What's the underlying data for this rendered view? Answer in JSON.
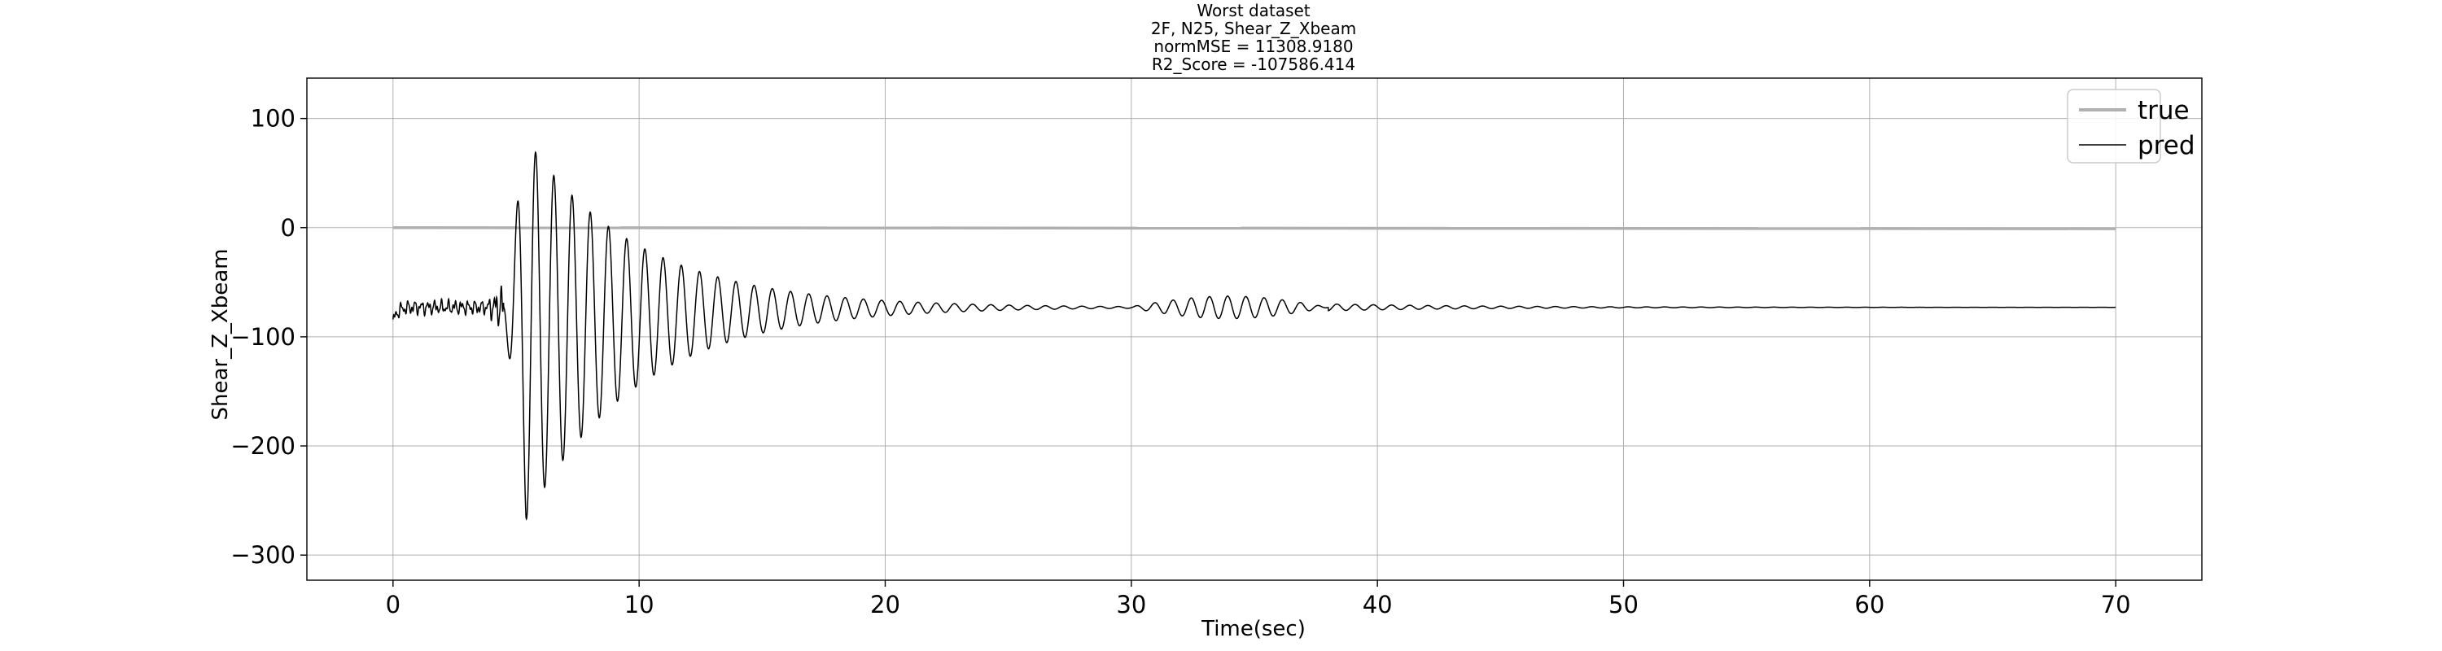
{
  "chart_data": {
    "type": "line",
    "title_lines": [
      "Worst dataset",
      "2F, N25, Shear_Z_Xbeam",
      "normMSE = 11308.9180",
      "R2_Score = -107586.414"
    ],
    "xlabel": "Time(sec)",
    "ylabel": "Shear_Z_Xbeam",
    "xlim": [
      -3.5,
      73.5
    ],
    "ylim": [
      -323,
      137
    ],
    "xticks": [
      0,
      10,
      20,
      30,
      40,
      50,
      60,
      70
    ],
    "yticks": [
      100,
      0,
      -100,
      -200,
      -300
    ],
    "xtick_labels": [
      "0",
      "10",
      "20",
      "30",
      "40",
      "50",
      "60",
      "70"
    ],
    "ytick_labels": [
      "100",
      "0",
      "−100",
      "−200",
      "−300"
    ],
    "grid": true,
    "legend_position": "top-right",
    "series": [
      {
        "name": "true",
        "color": "#b0b0b0",
        "shape": "constant",
        "x_range": [
          0,
          70
        ],
        "values": [
          0,
          -1
        ]
      },
      {
        "name": "pred",
        "color": "#000000",
        "shape": "decaying-oscillation",
        "x_range": [
          0,
          70
        ],
        "baseline": -73,
        "start_value": -87,
        "noise_amplitude": 8,
        "onset": 4.5,
        "peak_time": 5.4,
        "peak_amplitude": 175,
        "decay_rate": 0.22,
        "period": 0.74,
        "beat_segment": {
          "from": 30,
          "to": 38,
          "amplitude": 10
        },
        "min_value": -302,
        "max_value": 115
      }
    ]
  }
}
